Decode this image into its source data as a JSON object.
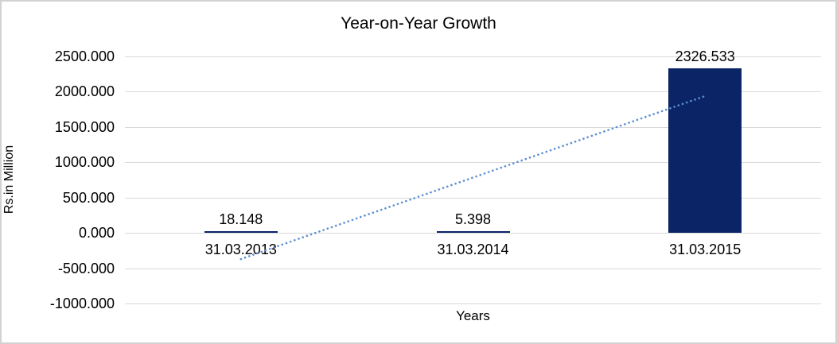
{
  "window": {
    "background": "#ffffff",
    "border_color": "#d2d2d2"
  },
  "chart_data": {
    "type": "bar",
    "title": "Year-on-Year Growth",
    "xlabel": "Years",
    "ylabel": "Rs.in Million",
    "categories": [
      "31.03.2013",
      "31.03.2014",
      "31.03.2015"
    ],
    "values": [
      18.148,
      5.398,
      2326.533
    ],
    "data_labels": [
      "18.148",
      "5.398",
      "2326.533"
    ],
    "series_name": "Year-on-Year Growth",
    "ylim": [
      -1000,
      2500
    ],
    "ytick_labels": [
      "2500.000",
      "2000.000",
      "1500.000",
      "1000.000",
      "500.000",
      "0.000",
      "-500.000",
      "-1000.000"
    ],
    "grid": true,
    "legend": "none",
    "colors": {
      "bar": "#0b2465",
      "trendline": "#5b8fd4",
      "gridline": "#d9d9d9",
      "text": "#000000"
    },
    "trendline": {
      "type": "linear",
      "style": "dotted",
      "start_value": -371,
      "end_value": 1938
    }
  }
}
